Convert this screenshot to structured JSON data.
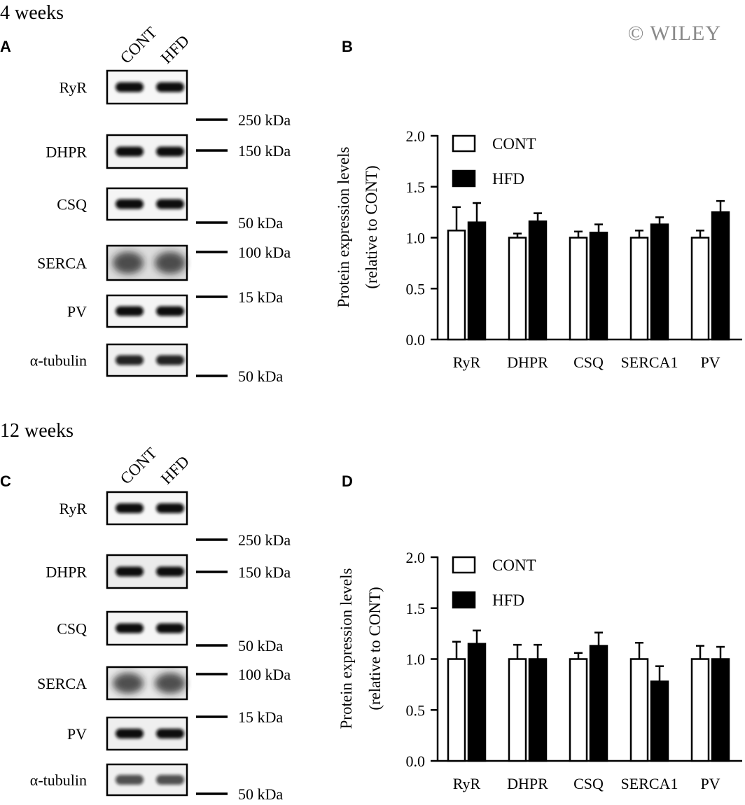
{
  "watermark": "© WILEY",
  "sections": [
    {
      "time_label": "4 weeks",
      "blot": {
        "panel_letter": "A",
        "lanes": [
          "CONT",
          "HFD"
        ],
        "rows": [
          {
            "label": "RyR",
            "marker_above": "250 kDa",
            "marker_below": ""
          },
          {
            "label": "DHPR",
            "marker_above": "",
            "marker_below": "150 kDa"
          },
          {
            "label": "CSQ",
            "marker_above": "",
            "marker_below": "50 kDa"
          },
          {
            "label": "SERCA",
            "marker_above": "100 kDa",
            "marker_below": ""
          },
          {
            "label": "PV",
            "marker_above": "15 kDa",
            "marker_below": ""
          },
          {
            "label": "α-tubulin",
            "marker_above": "",
            "marker_below": "50 kDa"
          }
        ]
      }
    },
    {
      "time_label": "12 weeks",
      "blot": {
        "panel_letter": "C",
        "lanes": [
          "CONT",
          "HFD"
        ],
        "rows": [
          {
            "label": "RyR",
            "marker_above": "250 kDa",
            "marker_below": ""
          },
          {
            "label": "DHPR",
            "marker_above": "",
            "marker_below": "150 kDa"
          },
          {
            "label": "CSQ",
            "marker_above": "",
            "marker_below": "50 kDa"
          },
          {
            "label": "SERCA",
            "marker_above": "100 kDa",
            "marker_below": ""
          },
          {
            "label": "PV",
            "marker_above": "15 kDa",
            "marker_below": ""
          },
          {
            "label": "α-tubulin",
            "marker_above": "",
            "marker_below": "50 kDa"
          }
        ]
      }
    }
  ],
  "chart_data": [
    {
      "panel": "B",
      "type": "bar",
      "title": "",
      "xlabel": "",
      "ylabel": [
        "Protein expression levels",
        "(relative to CONT)"
      ],
      "ylim": [
        0,
        2.0
      ],
      "yticks": [
        "0.0",
        "0.5",
        "1.0",
        "1.5",
        "2.0"
      ],
      "categories": [
        "RyR",
        "DHPR",
        "CSQ",
        "SERCA1",
        "PV"
      ],
      "legend_position": "top-left",
      "series": [
        {
          "name": "CONT",
          "color": "#ffffff",
          "values": [
            1.07,
            1.0,
            1.0,
            1.0,
            1.0
          ],
          "errors": [
            0.23,
            0.04,
            0.06,
            0.07,
            0.07
          ]
        },
        {
          "name": "HFD",
          "color": "#000000",
          "values": [
            1.15,
            1.16,
            1.05,
            1.13,
            1.25
          ],
          "errors": [
            0.19,
            0.08,
            0.08,
            0.07,
            0.11
          ]
        }
      ]
    },
    {
      "panel": "D",
      "type": "bar",
      "title": "",
      "xlabel": "",
      "ylabel": [
        "Protein expression levels",
        "(relative to CONT)"
      ],
      "ylim": [
        0,
        2.0
      ],
      "yticks": [
        "0.0",
        "0.5",
        "1.0",
        "1.5",
        "2.0"
      ],
      "categories": [
        "RyR",
        "DHPR",
        "CSQ",
        "SERCA1",
        "PV"
      ],
      "legend_position": "top-left",
      "series": [
        {
          "name": "CONT",
          "color": "#ffffff",
          "values": [
            1.0,
            1.0,
            1.0,
            1.0,
            1.0
          ],
          "errors": [
            0.17,
            0.14,
            0.06,
            0.16,
            0.13
          ]
        },
        {
          "name": "HFD",
          "color": "#000000",
          "values": [
            1.15,
            1.0,
            1.13,
            0.78,
            1.0
          ],
          "errors": [
            0.13,
            0.14,
            0.13,
            0.15,
            0.12
          ]
        }
      ]
    }
  ]
}
